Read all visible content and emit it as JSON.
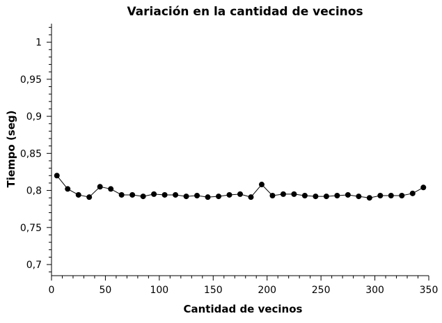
{
  "chart_data": {
    "type": "line",
    "title": "Variación en la cantidad de vecinos",
    "xlabel": "Cantidad de vecinos",
    "ylabel": "Tiempo (seg)",
    "xlim": [
      0,
      350
    ],
    "ylim": [
      0.685,
      1.025
    ],
    "grid": false,
    "x_ticks": [
      {
        "value": 0,
        "label": "0"
      },
      {
        "value": 50,
        "label": "50"
      },
      {
        "value": 100,
        "label": "100"
      },
      {
        "value": 150,
        "label": "150"
      },
      {
        "value": 200,
        "label": "200"
      },
      {
        "value": 250,
        "label": "250"
      },
      {
        "value": 300,
        "label": "300"
      },
      {
        "value": 350,
        "label": "350"
      }
    ],
    "x_minor_step": 10,
    "y_ticks": [
      {
        "value": 0.7,
        "label": "0,7"
      },
      {
        "value": 0.75,
        "label": "0,75"
      },
      {
        "value": 0.8,
        "label": "0,8"
      },
      {
        "value": 0.85,
        "label": "0,85"
      },
      {
        "value": 0.9,
        "label": "0,9"
      },
      {
        "value": 0.95,
        "label": "0,95"
      },
      {
        "value": 1.0,
        "label": "1"
      }
    ],
    "y_minor_step": 0.01,
    "series": [
      {
        "color": "#000000",
        "x": [
          5,
          15,
          25,
          35,
          45,
          55,
          65,
          75,
          85,
          95,
          105,
          115,
          125,
          135,
          145,
          155,
          165,
          175,
          185,
          195,
          205,
          215,
          225,
          235,
          245,
          255,
          265,
          275,
          285,
          295,
          305,
          315,
          325,
          335,
          345
        ],
        "y": [
          0.82,
          0.802,
          0.794,
          0.791,
          0.805,
          0.802,
          0.794,
          0.794,
          0.792,
          0.795,
          0.794,
          0.794,
          0.792,
          0.793,
          0.791,
          0.792,
          0.794,
          0.795,
          0.791,
          0.808,
          0.793,
          0.795,
          0.795,
          0.793,
          0.792,
          0.792,
          0.793,
          0.794,
          0.792,
          0.79,
          0.793,
          0.793,
          0.793,
          0.796,
          0.804
        ]
      }
    ]
  }
}
